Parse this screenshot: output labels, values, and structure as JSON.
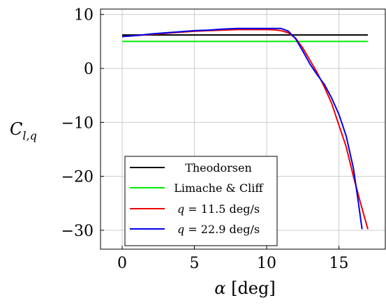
{
  "chart_data": {
    "type": "line",
    "title": "",
    "xlabel": "α [deg]",
    "ylabel": "C_{l,q}",
    "xlim": [
      -1.5,
      18.5
    ],
    "ylim": [
      -33.5,
      11
    ],
    "x_ticks": [
      0,
      5,
      10,
      15
    ],
    "y_ticks": [
      10,
      0,
      -10,
      -20,
      -30
    ],
    "x_tick_labels": [
      "0",
      "5",
      "10",
      "15"
    ],
    "y_tick_labels": [
      "10",
      "0",
      "−10",
      "−20",
      "−30"
    ],
    "grid": true,
    "legend_position": "bottom-left",
    "series": [
      {
        "name": "Theodorsen",
        "color": "#000000",
        "x": [
          0,
          17
        ],
        "y": [
          6.2,
          6.2
        ]
      },
      {
        "name": "Limache & Cliff",
        "color": "#00ee00",
        "x": [
          0,
          17
        ],
        "y": [
          5.0,
          5.0
        ]
      },
      {
        "name": "q = 11.5 deg/s",
        "color": "#ee0000",
        "x": [
          0,
          1,
          2,
          3,
          4,
          5,
          6,
          7,
          8,
          9,
          10,
          10.5,
          11,
          11.5,
          12,
          12.5,
          13,
          13.5,
          14,
          14.5,
          15,
          15.5,
          16,
          16.5,
          17
        ],
        "y": [
          5.9,
          6.1,
          6.3,
          6.5,
          6.7,
          6.9,
          7.0,
          7.1,
          7.2,
          7.2,
          7.2,
          7.15,
          7.0,
          6.6,
          5.6,
          3.8,
          1.5,
          -0.8,
          -3.5,
          -6.5,
          -10.5,
          -14.5,
          -20.0,
          -25.0,
          -29.8
        ]
      },
      {
        "name": "q = 22.9 deg/s",
        "color": "#0000ee",
        "x": [
          0,
          1,
          2,
          3,
          4,
          5,
          6,
          7,
          8,
          9,
          10,
          10.5,
          11,
          11.5,
          12,
          12.5,
          13,
          13.5,
          14,
          14.5,
          15,
          15.5,
          16,
          16.3,
          16.6
        ],
        "y": [
          5.9,
          6.1,
          6.4,
          6.6,
          6.8,
          7.0,
          7.1,
          7.3,
          7.4,
          7.4,
          7.4,
          7.4,
          7.4,
          6.9,
          5.5,
          3.2,
          0.8,
          -1.2,
          -3.0,
          -5.5,
          -8.5,
          -12.5,
          -18.5,
          -24.0,
          -29.8
        ]
      }
    ]
  }
}
